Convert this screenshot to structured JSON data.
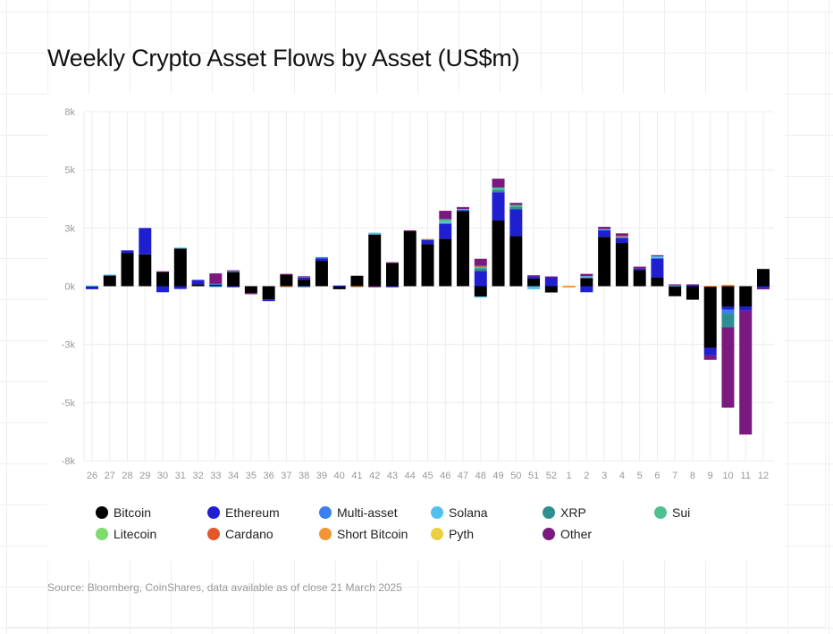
{
  "chart_data": {
    "type": "bar",
    "stacked": true,
    "title": "Weekly Crypto Asset Flows by Asset (US$m)",
    "ylim": [
      -7500,
      7500
    ],
    "yticks": [
      7500,
      5000,
      2500,
      0,
      -2500,
      -5000,
      -7500
    ],
    "ytick_labels": [
      "8k",
      "5k",
      "3k",
      "0k",
      "-3k",
      "-5k",
      "-8k"
    ],
    "grid": true,
    "legend_position": "bottom",
    "categories": [
      "26",
      "27",
      "28",
      "29",
      "30",
      "31",
      "32",
      "33",
      "34",
      "35",
      "36",
      "37",
      "38",
      "39",
      "40",
      "41",
      "42",
      "43",
      "44",
      "45",
      "46",
      "47",
      "48",
      "49",
      "50",
      "51",
      "52",
      "1",
      "2",
      "3",
      "4",
      "5",
      "6",
      "7",
      "8",
      "9",
      "10",
      "11",
      "12"
    ],
    "series": [
      {
        "name": "Bitcoin",
        "color": "#000000",
        "values": [
          -30,
          460,
          1420,
          1370,
          600,
          1620,
          80,
          80,
          620,
          -300,
          -560,
          500,
          280,
          1090,
          -130,
          450,
          2220,
          990,
          2370,
          1810,
          2040,
          3220,
          -440,
          2820,
          2150,
          330,
          -270,
          0,
          350,
          2120,
          1860,
          700,
          380,
          -430,
          -580,
          -2650,
          -880,
          -880,
          740
        ]
      },
      {
        "name": "Ethereum",
        "color": "#1f1fd1",
        "values": [
          -100,
          0,
          120,
          1130,
          -260,
          -120,
          190,
          0,
          -40,
          0,
          -80,
          0,
          100,
          100,
          30,
          0,
          0,
          -20,
          0,
          200,
          650,
          60,
          650,
          1220,
          1150,
          90,
          390,
          0,
          -260,
          290,
          230,
          60,
          810,
          0,
          40,
          -320,
          -130,
          -170,
          -90
        ]
      },
      {
        "name": "Multi-asset",
        "color": "#3b7ff0",
        "values": [
          0,
          0,
          0,
          0,
          0,
          0,
          0,
          20,
          0,
          0,
          0,
          0,
          -20,
          60,
          0,
          0,
          0,
          0,
          0,
          0,
          0,
          0,
          0,
          0,
          0,
          0,
          0,
          0,
          0,
          0,
          0,
          0,
          0,
          0,
          0,
          0,
          -180,
          0,
          0
        ]
      },
      {
        "name": "Solana",
        "color": "#52c0f0",
        "values": [
          30,
          40,
          0,
          0,
          0,
          40,
          0,
          -40,
          30,
          0,
          0,
          0,
          30,
          0,
          0,
          0,
          80,
          0,
          0,
          0,
          60,
          30,
          -30,
          0,
          0,
          -130,
          0,
          0,
          80,
          40,
          30,
          0,
          90,
          40,
          0,
          0,
          0,
          0,
          0
        ]
      },
      {
        "name": "XRP",
        "color": "#2f8f90",
        "values": [
          0,
          0,
          0,
          0,
          0,
          0,
          0,
          0,
          0,
          0,
          0,
          0,
          0,
          0,
          0,
          0,
          0,
          0,
          0,
          0,
          0,
          0,
          120,
          100,
          120,
          0,
          0,
          0,
          0,
          0,
          0,
          0,
          0,
          0,
          0,
          0,
          -570,
          0,
          0
        ]
      },
      {
        "name": "Sui",
        "color": "#4fbf94",
        "values": [
          0,
          0,
          0,
          0,
          0,
          0,
          0,
          0,
          0,
          0,
          0,
          0,
          0,
          0,
          0,
          0,
          0,
          0,
          0,
          0,
          130,
          0,
          80,
          100,
          70,
          0,
          0,
          0,
          0,
          0,
          0,
          0,
          0,
          0,
          0,
          0,
          0,
          0,
          0
        ]
      },
      {
        "name": "Litecoin",
        "color": "#7edb6c",
        "values": [
          0,
          0,
          0,
          0,
          0,
          0,
          0,
          0,
          0,
          0,
          0,
          0,
          0,
          0,
          0,
          0,
          0,
          0,
          0,
          0,
          0,
          0,
          0,
          0,
          0,
          0,
          0,
          0,
          0,
          0,
          0,
          0,
          0,
          0,
          0,
          0,
          0,
          0,
          0
        ]
      },
      {
        "name": "Cardano",
        "color": "#e2572b",
        "values": [
          0,
          0,
          0,
          0,
          0,
          0,
          0,
          0,
          0,
          0,
          0,
          0,
          0,
          0,
          0,
          0,
          0,
          0,
          0,
          0,
          0,
          0,
          30,
          0,
          0,
          0,
          0,
          -30,
          0,
          0,
          40,
          0,
          0,
          0,
          0,
          0,
          0,
          0,
          0
        ]
      },
      {
        "name": "Short Bitcoin",
        "color": "#f29535",
        "values": [
          0,
          0,
          0,
          0,
          0,
          0,
          0,
          0,
          0,
          0,
          0,
          -20,
          0,
          0,
          0,
          -20,
          0,
          0,
          0,
          0,
          0,
          0,
          0,
          0,
          0,
          0,
          0,
          20,
          0,
          0,
          0,
          0,
          0,
          0,
          0,
          20,
          60,
          0,
          0
        ]
      },
      {
        "name": "Pyth",
        "color": "#ead041",
        "values": [
          0,
          0,
          0,
          0,
          0,
          0,
          0,
          0,
          0,
          0,
          0,
          0,
          0,
          0,
          0,
          0,
          0,
          0,
          0,
          30,
          0,
          0,
          0,
          0,
          0,
          0,
          0,
          0,
          0,
          0,
          0,
          0,
          0,
          0,
          0,
          0,
          0,
          0,
          0
        ]
      },
      {
        "name": "Other",
        "color": "#7b1a7e",
        "values": [
          0,
          0,
          0,
          0,
          40,
          0,
          0,
          450,
          30,
          -20,
          0,
          30,
          20,
          0,
          0,
          0,
          -20,
          40,
          30,
          0,
          360,
          90,
          300,
          380,
          90,
          50,
          30,
          0,
          100,
          100,
          110,
          80,
          50,
          40,
          40,
          -190,
          -3460,
          -5320,
          -20
        ]
      }
    ]
  },
  "source": "Source: Bloomberg, CoinShares, data available as of close 21 March 2025"
}
